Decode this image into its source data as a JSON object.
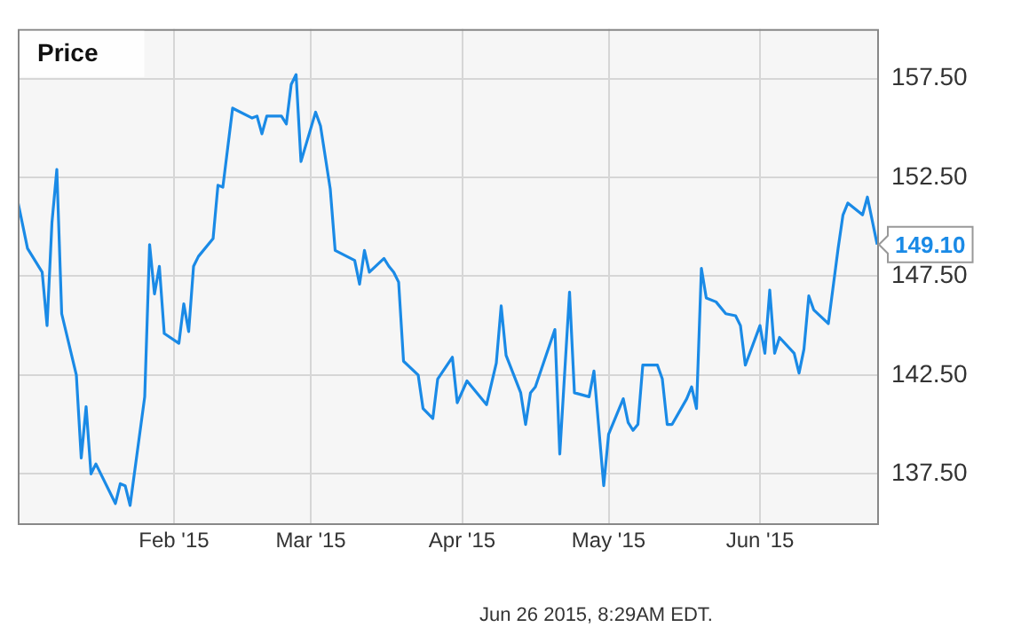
{
  "chart_data": {
    "type": "line",
    "title": "Price",
    "x": [
      "2014-12-31",
      "2015-01-02",
      "2015-01-05",
      "2015-01-06",
      "2015-01-07",
      "2015-01-08",
      "2015-01-09",
      "2015-01-12",
      "2015-01-13",
      "2015-01-14",
      "2015-01-15",
      "2015-01-16",
      "2015-01-20",
      "2015-01-21",
      "2015-01-22",
      "2015-01-23",
      "2015-01-26",
      "2015-01-27",
      "2015-01-28",
      "2015-01-29",
      "2015-01-30",
      "2015-02-02",
      "2015-02-03",
      "2015-02-04",
      "2015-02-05",
      "2015-02-06",
      "2015-02-09",
      "2015-02-10",
      "2015-02-11",
      "2015-02-13",
      "2015-02-17",
      "2015-02-18",
      "2015-02-19",
      "2015-02-20",
      "2015-02-23",
      "2015-02-24",
      "2015-02-25",
      "2015-02-26",
      "2015-02-27",
      "2015-03-02",
      "2015-03-03",
      "2015-03-05",
      "2015-03-06",
      "2015-03-10",
      "2015-03-11",
      "2015-03-12",
      "2015-03-13",
      "2015-03-16",
      "2015-03-17",
      "2015-03-18",
      "2015-03-19",
      "2015-03-20",
      "2015-03-23",
      "2015-03-24",
      "2015-03-26",
      "2015-03-27",
      "2015-03-30",
      "2015-03-31",
      "2015-04-02",
      "2015-04-06",
      "2015-04-08",
      "2015-04-09",
      "2015-04-10",
      "2015-04-13",
      "2015-04-14",
      "2015-04-15",
      "2015-04-16",
      "2015-04-20",
      "2015-04-21",
      "2015-04-23",
      "2015-04-24",
      "2015-04-27",
      "2015-04-28",
      "2015-04-30",
      "2015-05-01",
      "2015-05-04",
      "2015-05-05",
      "2015-05-06",
      "2015-05-07",
      "2015-05-08",
      "2015-05-11",
      "2015-05-12",
      "2015-05-13",
      "2015-05-14",
      "2015-05-17",
      "2015-05-18",
      "2015-05-19",
      "2015-05-20",
      "2015-05-21",
      "2015-05-23",
      "2015-05-25",
      "2015-05-27",
      "2015-05-28",
      "2015-05-29",
      "2015-06-01",
      "2015-06-02",
      "2015-06-03",
      "2015-06-04",
      "2015-06-05",
      "2015-06-08",
      "2015-06-09",
      "2015-06-10",
      "2015-06-11",
      "2015-06-12",
      "2015-06-15",
      "2015-06-17",
      "2015-06-18",
      "2015-06-19",
      "2015-06-22",
      "2015-06-23",
      "2015-06-25"
    ],
    "series": [
      {
        "color": "#1a8ae6",
        "values": [
          151.3,
          148.9,
          147.7,
          145.0,
          150.2,
          152.9,
          145.6,
          142.5,
          138.3,
          140.9,
          137.5,
          138.0,
          136.0,
          137.0,
          136.9,
          135.9,
          141.4,
          149.1,
          146.6,
          148.0,
          144.6,
          144.1,
          146.1,
          144.7,
          148.0,
          148.5,
          149.4,
          152.1,
          152.0,
          156.0,
          155.5,
          155.6,
          154.7,
          155.6,
          155.6,
          155.2,
          157.2,
          157.7,
          153.3,
          155.8,
          155.1,
          151.9,
          148.8,
          148.3,
          147.1,
          148.8,
          147.7,
          148.4,
          148.0,
          147.7,
          147.2,
          143.2,
          142.5,
          140.8,
          140.3,
          142.3,
          143.4,
          141.1,
          142.2,
          141.0,
          143.1,
          146.0,
          143.5,
          141.6,
          140.0,
          141.6,
          141.9,
          144.8,
          138.5,
          146.7,
          141.6,
          141.4,
          142.7,
          136.9,
          139.5,
          141.3,
          140.1,
          139.7,
          140.0,
          143.0,
          143.0,
          142.3,
          140.0,
          140.0,
          141.3,
          141.9,
          140.8,
          147.9,
          146.4,
          146.2,
          145.6,
          145.5,
          145.0,
          143.0,
          145.0,
          143.6,
          146.8,
          143.6,
          144.4,
          143.6,
          142.6,
          143.8,
          146.5,
          145.8,
          145.1,
          148.9,
          150.6,
          151.2,
          150.6,
          151.5,
          149.1
        ],
        "value_labels": [
          null,
          null,
          null,
          null,
          null,
          null,
          null,
          null,
          null,
          null,
          null,
          null,
          null,
          null,
          null,
          null,
          null,
          null,
          null,
          null,
          null,
          null,
          null,
          null,
          null,
          null,
          null,
          null,
          null,
          null,
          null,
          null,
          null,
          null,
          null,
          null,
          null,
          null,
          null,
          null,
          null,
          null,
          null,
          null,
          null,
          null,
          null,
          null,
          null,
          null,
          null,
          null,
          null,
          null,
          null,
          null,
          null,
          null,
          null,
          null,
          null,
          null,
          null,
          null,
          null,
          null,
          null,
          null,
          null,
          null,
          null,
          null,
          null,
          null,
          null,
          null,
          null,
          null,
          null,
          null,
          null,
          null,
          null,
          null,
          null,
          null,
          null,
          null,
          null,
          null,
          null,
          null,
          null,
          null,
          null,
          null,
          null,
          null,
          null,
          null,
          null,
          null,
          null,
          null,
          null,
          null,
          null,
          null,
          null,
          null,
          "149.10"
        ]
      }
    ],
    "xlim": [
      "2014-12-31",
      "2015-06-25"
    ],
    "xticks": [
      {
        "value": "2015-02-01",
        "label": "Feb '15"
      },
      {
        "value": "2015-03-01",
        "label": "Mar '15"
      },
      {
        "value": "2015-04-01",
        "label": "Apr '15"
      },
      {
        "value": "2015-05-01",
        "label": "May '15"
      },
      {
        "value": "2015-06-01",
        "label": "Jun '15"
      }
    ],
    "ylim": [
      135,
      160
    ],
    "yticks": [
      {
        "value": 137.5,
        "label": "137.50"
      },
      {
        "value": 142.5,
        "label": "142.50"
      },
      {
        "value": 147.5,
        "label": "147.50"
      },
      {
        "value": 152.5,
        "label": "152.50"
      },
      {
        "value": 157.5,
        "label": "157.50"
      }
    ],
    "grid": true,
    "marker": "none",
    "line_style": "solid",
    "annotations": [
      "Jun 26 2015, 8:29AM EDT."
    ]
  }
}
